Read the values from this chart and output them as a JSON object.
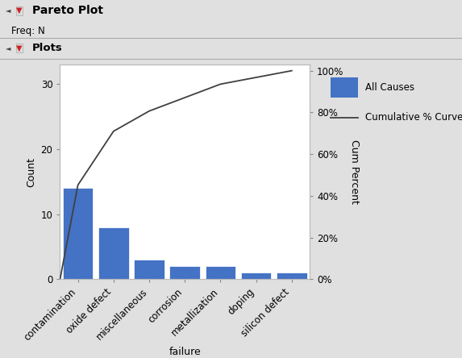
{
  "categories": [
    "contamination",
    "oxide defect",
    "miscellaneous",
    "corrosion",
    "metallization",
    "doping",
    "silicon defect"
  ],
  "counts": [
    14,
    8,
    3,
    2,
    2,
    1,
    1
  ],
  "bar_color": "#4472C4",
  "line_color": "#404040",
  "title": "Pareto Plot",
  "freq_label": "Freq: N",
  "plots_label": "Plots",
  "xlabel": "failure",
  "ylabel_left": "Count",
  "ylabel_right": "Cum Percent",
  "yticks_left": [
    0,
    10,
    20,
    30
  ],
  "yticks_right": [
    0,
    20,
    40,
    60,
    80,
    100
  ],
  "ylim_left": [
    0,
    33
  ],
  "ylim_right": [
    0,
    103
  ],
  "legend_bar_label": "All Causes",
  "legend_line_label": "Cumulative % Curve",
  "bg_color": "#E0E0E0",
  "plot_bg": "#FFFFFF",
  "header_line1_color": "#C8C8C8",
  "header_line2_color": "#B8B8B8"
}
